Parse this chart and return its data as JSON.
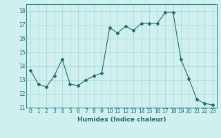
{
  "x": [
    0,
    1,
    2,
    3,
    4,
    5,
    6,
    7,
    8,
    9,
    10,
    11,
    12,
    13,
    14,
    15,
    16,
    17,
    18,
    19,
    20,
    21,
    22,
    23
  ],
  "y": [
    13.7,
    12.7,
    12.5,
    13.3,
    14.5,
    12.7,
    12.6,
    13.0,
    13.3,
    13.5,
    16.8,
    16.4,
    16.9,
    16.6,
    17.1,
    17.1,
    17.1,
    17.9,
    17.9,
    14.5,
    13.1,
    11.6,
    11.3,
    11.2
  ],
  "line_color": "#1a6b6b",
  "marker": "D",
  "marker_size": 2,
  "bg_color": "#d0f0f0",
  "grid_color": "#b0d8d8",
  "xlabel": "Humidex (Indice chaleur)",
  "xlim": [
    -0.5,
    23.5
  ],
  "ylim": [
    11,
    18.5
  ],
  "yticks": [
    11,
    12,
    13,
    14,
    15,
    16,
    17,
    18
  ],
  "xticks": [
    0,
    1,
    2,
    3,
    4,
    5,
    6,
    7,
    8,
    9,
    10,
    11,
    12,
    13,
    14,
    15,
    16,
    17,
    18,
    19,
    20,
    21,
    22,
    23
  ],
  "tick_color": "#1a6b6b",
  "label_fontsize": 6.5,
  "tick_fontsize": 5.5
}
